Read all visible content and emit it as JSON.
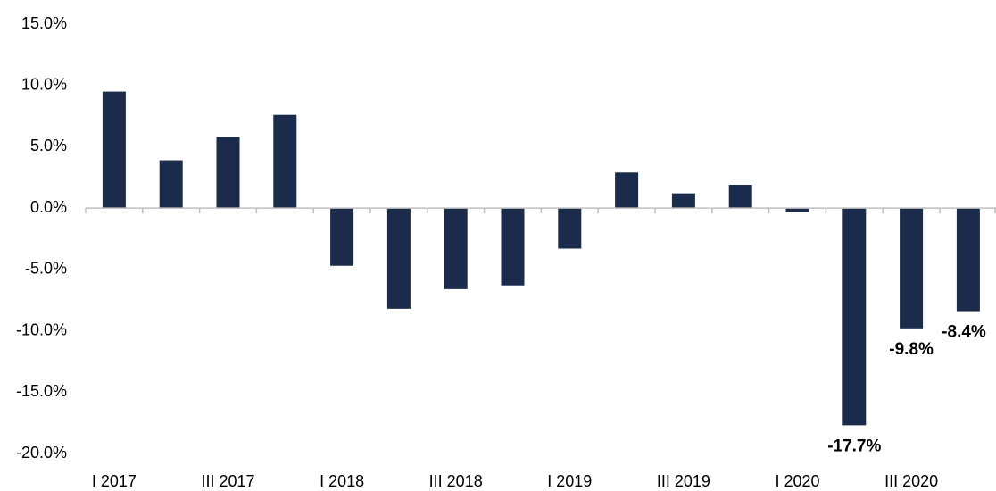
{
  "chart_data": {
    "type": "bar",
    "categories": [
      "I 2017",
      null,
      "III 2017",
      null,
      "I 2018",
      null,
      "III 2018",
      null,
      "I 2019",
      null,
      "III 2019",
      null,
      "I 2020",
      null,
      "III 2020",
      null
    ],
    "values": [
      9.5,
      3.9,
      5.8,
      7.6,
      -4.7,
      -8.2,
      -6.6,
      -6.3,
      -3.3,
      2.9,
      1.2,
      1.9,
      -0.3,
      -17.7,
      -9.8,
      -8.4
    ],
    "value_labels": [
      null,
      null,
      null,
      null,
      null,
      null,
      null,
      null,
      null,
      null,
      null,
      null,
      null,
      "-17.7%",
      "-9.8%",
      "-8.4%"
    ],
    "color": "#1b2b4b",
    "ylim": [
      -20,
      15
    ],
    "yticks": [
      {
        "value": -20,
        "label": "-20.0%"
      },
      {
        "value": -15,
        "label": "-15.0%"
      },
      {
        "value": -10,
        "label": "-10.0%"
      },
      {
        "value": -5,
        "label": "-5.0%"
      },
      {
        "value": 0,
        "label": "0.0%"
      },
      {
        "value": 5,
        "label": "5.0%"
      },
      {
        "value": 10,
        "label": "10.0%"
      },
      {
        "value": 15,
        "label": "15.0%"
      }
    ],
    "grid": false
  }
}
